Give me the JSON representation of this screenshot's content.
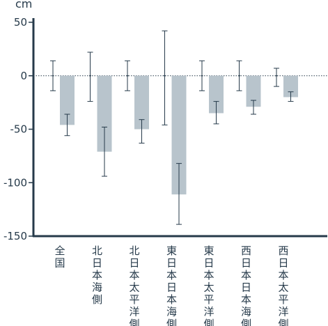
{
  "chart_data": {
    "type": "bar",
    "title": "",
    "ylabel": "cm",
    "xlabel": "",
    "ylim": [
      -150,
      50
    ],
    "yticks": [
      50,
      0,
      -50,
      -100,
      -150
    ],
    "ytick_labels": [
      "50",
      "0",
      "-50",
      "-100",
      "-150"
    ],
    "zero_line": "dotted",
    "grid": false,
    "legend": "none",
    "categories": [
      "全国",
      "北日本海側",
      "北日本太平洋側",
      "東日本日本海側",
      "東日本太平洋側",
      "西日本日本海側",
      "西日本太平洋側"
    ],
    "series": [
      {
        "kind": "reference-range",
        "center": [
          0,
          0,
          0,
          0,
          0,
          0,
          0
        ],
        "low": [
          -14,
          -24,
          -14,
          -46,
          -14,
          -14,
          -10
        ],
        "high": [
          14,
          22,
          14,
          42,
          14,
          14,
          7
        ]
      },
      {
        "kind": "bar",
        "values": [
          -46,
          -71,
          -50,
          -111,
          -35,
          -29,
          -20
        ],
        "err_low": [
          -56,
          -94,
          -63,
          -139,
          -45,
          -36,
          -24
        ],
        "err_high": [
          -36,
          -48,
          -41,
          -82,
          -24,
          -23,
          -15
        ],
        "color": "#b8c4cc"
      }
    ],
    "colors": {
      "axis": "#263a4a",
      "bar": "#b8c4cc",
      "error": "#263a4a"
    }
  }
}
